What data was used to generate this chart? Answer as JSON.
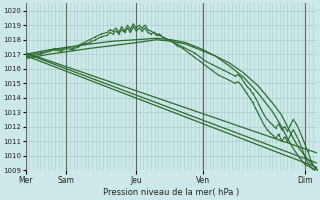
{
  "bg_color": "#cce8e8",
  "grid_color": "#aacccc",
  "line_color": "#2d6b2d",
  "xlabel_text": "Pression niveau de la mer( hPa )",
  "ylim": [
    1009,
    1020.5
  ],
  "yticks": [
    1009,
    1010,
    1011,
    1012,
    1013,
    1014,
    1015,
    1016,
    1017,
    1018,
    1019,
    1020
  ],
  "xtick_labels": [
    "Mer",
    "Sam",
    "Jeu",
    "Ven",
    "Dim"
  ],
  "vline_color": "#666666",
  "vline_lw": 0.7,
  "series": [
    {
      "name": "line_smooth1",
      "lw": 0.9,
      "marker": null,
      "points": [
        [
          0,
          1016.7
        ],
        [
          8,
          1017.0
        ],
        [
          15,
          1017.2
        ],
        [
          22,
          1017.4
        ],
        [
          30,
          1017.6
        ],
        [
          38,
          1017.8
        ],
        [
          45,
          1018.0
        ],
        [
          50,
          1017.9
        ],
        [
          55,
          1017.7
        ],
        [
          60,
          1017.3
        ],
        [
          65,
          1016.9
        ],
        [
          70,
          1016.4
        ],
        [
          75,
          1015.7
        ],
        [
          80,
          1014.8
        ],
        [
          85,
          1013.6
        ],
        [
          88,
          1012.8
        ],
        [
          90,
          1012.0
        ],
        [
          92,
          1011.2
        ],
        [
          94,
          1010.5
        ],
        [
          96,
          1010.0
        ],
        [
          98,
          1009.5
        ],
        [
          100,
          1009.1
        ]
      ]
    },
    {
      "name": "line_smooth2",
      "lw": 0.9,
      "marker": null,
      "points": [
        [
          0,
          1017.0
        ],
        [
          8,
          1017.3
        ],
        [
          15,
          1017.5
        ],
        [
          22,
          1017.7
        ],
        [
          30,
          1017.9
        ],
        [
          38,
          1018.0
        ],
        [
          45,
          1018.1
        ],
        [
          50,
          1018.0
        ],
        [
          55,
          1017.8
        ],
        [
          60,
          1017.4
        ],
        [
          65,
          1016.9
        ],
        [
          70,
          1016.2
        ],
        [
          75,
          1015.4
        ],
        [
          80,
          1014.3
        ],
        [
          85,
          1013.0
        ],
        [
          88,
          1012.0
        ],
        [
          90,
          1011.2
        ],
        [
          92,
          1010.5
        ],
        [
          94,
          1009.9
        ],
        [
          96,
          1009.4
        ],
        [
          98,
          1009.2
        ],
        [
          100,
          1009.0
        ]
      ]
    },
    {
      "name": "line_straight1",
      "lw": 0.9,
      "marker": null,
      "points": [
        [
          0,
          1016.9
        ],
        [
          100,
          1009.2
        ]
      ]
    },
    {
      "name": "line_straight2",
      "lw": 0.9,
      "marker": null,
      "points": [
        [
          0,
          1017.05
        ],
        [
          100,
          1009.5
        ]
      ]
    },
    {
      "name": "line_straight3",
      "lw": 0.9,
      "marker": null,
      "points": [
        [
          0,
          1017.1
        ],
        [
          100,
          1010.2
        ]
      ]
    },
    {
      "name": "line_bumpy_peak",
      "lw": 0.8,
      "marker": ".",
      "ms": 2.0,
      "points": [
        [
          0,
          1016.9
        ],
        [
          5,
          1017.1
        ],
        [
          8,
          1017.2
        ],
        [
          10,
          1017.3
        ],
        [
          12,
          1017.2
        ],
        [
          14,
          1017.4
        ],
        [
          16,
          1017.3
        ],
        [
          18,
          1017.5
        ],
        [
          20,
          1017.7
        ],
        [
          22,
          1017.8
        ],
        [
          24,
          1018.0
        ],
        [
          26,
          1018.2
        ],
        [
          28,
          1018.3
        ],
        [
          29,
          1018.5
        ],
        [
          30,
          1018.4
        ],
        [
          31,
          1018.6
        ],
        [
          32,
          1018.4
        ],
        [
          33,
          1018.7
        ],
        [
          34,
          1018.5
        ],
        [
          35,
          1018.8
        ],
        [
          36,
          1018.5
        ],
        [
          37,
          1018.9
        ],
        [
          38,
          1018.6
        ],
        [
          39,
          1018.8
        ],
        [
          40,
          1018.6
        ],
        [
          41,
          1018.8
        ],
        [
          42,
          1018.5
        ],
        [
          43,
          1018.4
        ],
        [
          44,
          1018.5
        ],
        [
          45,
          1018.3
        ],
        [
          46,
          1018.4
        ],
        [
          47,
          1018.2
        ],
        [
          48,
          1018.1
        ],
        [
          50,
          1017.9
        ],
        [
          52,
          1017.7
        ],
        [
          54,
          1017.5
        ],
        [
          56,
          1017.3
        ],
        [
          58,
          1017.1
        ],
        [
          60,
          1016.8
        ],
        [
          62,
          1016.5
        ],
        [
          64,
          1016.3
        ],
        [
          66,
          1016.1
        ],
        [
          68,
          1015.9
        ],
        [
          70,
          1015.7
        ],
        [
          72,
          1015.5
        ],
        [
          73,
          1015.6
        ],
        [
          74,
          1015.4
        ],
        [
          75,
          1015.1
        ],
        [
          76,
          1014.8
        ],
        [
          77,
          1014.6
        ],
        [
          78,
          1014.3
        ],
        [
          79,
          1014.0
        ],
        [
          80,
          1013.6
        ],
        [
          81,
          1013.2
        ],
        [
          82,
          1012.8
        ],
        [
          83,
          1012.5
        ],
        [
          84,
          1012.3
        ],
        [
          85,
          1012.1
        ],
        [
          86,
          1011.9
        ],
        [
          87,
          1012.2
        ],
        [
          88,
          1011.8
        ],
        [
          89,
          1012.0
        ],
        [
          90,
          1011.7
        ],
        [
          91,
          1012.1
        ],
        [
          92,
          1012.5
        ],
        [
          93,
          1012.2
        ],
        [
          94,
          1011.8
        ],
        [
          95,
          1011.3
        ],
        [
          96,
          1010.8
        ],
        [
          97,
          1010.3
        ],
        [
          98,
          1009.7
        ],
        [
          99,
          1009.3
        ],
        [
          100,
          1009.1
        ]
      ]
    },
    {
      "name": "line_bumpy2",
      "lw": 0.8,
      "marker": ".",
      "ms": 2.0,
      "points": [
        [
          0,
          1016.8
        ],
        [
          5,
          1017.0
        ],
        [
          8,
          1017.2
        ],
        [
          10,
          1017.4
        ],
        [
          12,
          1017.3
        ],
        [
          14,
          1017.5
        ],
        [
          16,
          1017.4
        ],
        [
          18,
          1017.6
        ],
        [
          20,
          1017.8
        ],
        [
          22,
          1018.0
        ],
        [
          24,
          1018.2
        ],
        [
          26,
          1018.4
        ],
        [
          28,
          1018.5
        ],
        [
          29,
          1018.7
        ],
        [
          30,
          1018.6
        ],
        [
          31,
          1018.8
        ],
        [
          32,
          1018.5
        ],
        [
          33,
          1018.9
        ],
        [
          34,
          1018.6
        ],
        [
          35,
          1019.0
        ],
        [
          36,
          1018.7
        ],
        [
          37,
          1019.1
        ],
        [
          38,
          1018.8
        ],
        [
          39,
          1019.0
        ],
        [
          40,
          1018.8
        ],
        [
          41,
          1019.0
        ],
        [
          42,
          1018.7
        ],
        [
          44,
          1018.5
        ],
        [
          46,
          1018.3
        ],
        [
          48,
          1018.1
        ],
        [
          50,
          1017.9
        ],
        [
          52,
          1017.6
        ],
        [
          54,
          1017.4
        ],
        [
          56,
          1017.1
        ],
        [
          58,
          1016.8
        ],
        [
          60,
          1016.5
        ],
        [
          62,
          1016.2
        ],
        [
          64,
          1015.9
        ],
        [
          66,
          1015.6
        ],
        [
          68,
          1015.4
        ],
        [
          70,
          1015.2
        ],
        [
          72,
          1015.0
        ],
        [
          73,
          1015.1
        ],
        [
          74,
          1014.9
        ],
        [
          75,
          1014.6
        ],
        [
          76,
          1014.3
        ],
        [
          77,
          1014.0
        ],
        [
          78,
          1013.7
        ],
        [
          79,
          1013.3
        ],
        [
          80,
          1012.9
        ],
        [
          81,
          1012.5
        ],
        [
          82,
          1012.1
        ],
        [
          83,
          1011.8
        ],
        [
          84,
          1011.6
        ],
        [
          85,
          1011.4
        ],
        [
          86,
          1011.2
        ],
        [
          87,
          1011.5
        ],
        [
          88,
          1011.0
        ],
        [
          89,
          1011.3
        ],
        [
          90,
          1011.0
        ],
        [
          91,
          1011.4
        ],
        [
          92,
          1011.8
        ],
        [
          93,
          1011.4
        ],
        [
          94,
          1011.0
        ],
        [
          95,
          1010.5
        ],
        [
          96,
          1009.9
        ],
        [
          97,
          1009.5
        ],
        [
          98,
          1009.2
        ],
        [
          99,
          1009.0
        ],
        [
          100,
          1009.0
        ]
      ]
    }
  ],
  "vlines_x": [
    0.0,
    14.0,
    38.0,
    61.0,
    96.0
  ],
  "xlim": [
    0,
    100
  ]
}
